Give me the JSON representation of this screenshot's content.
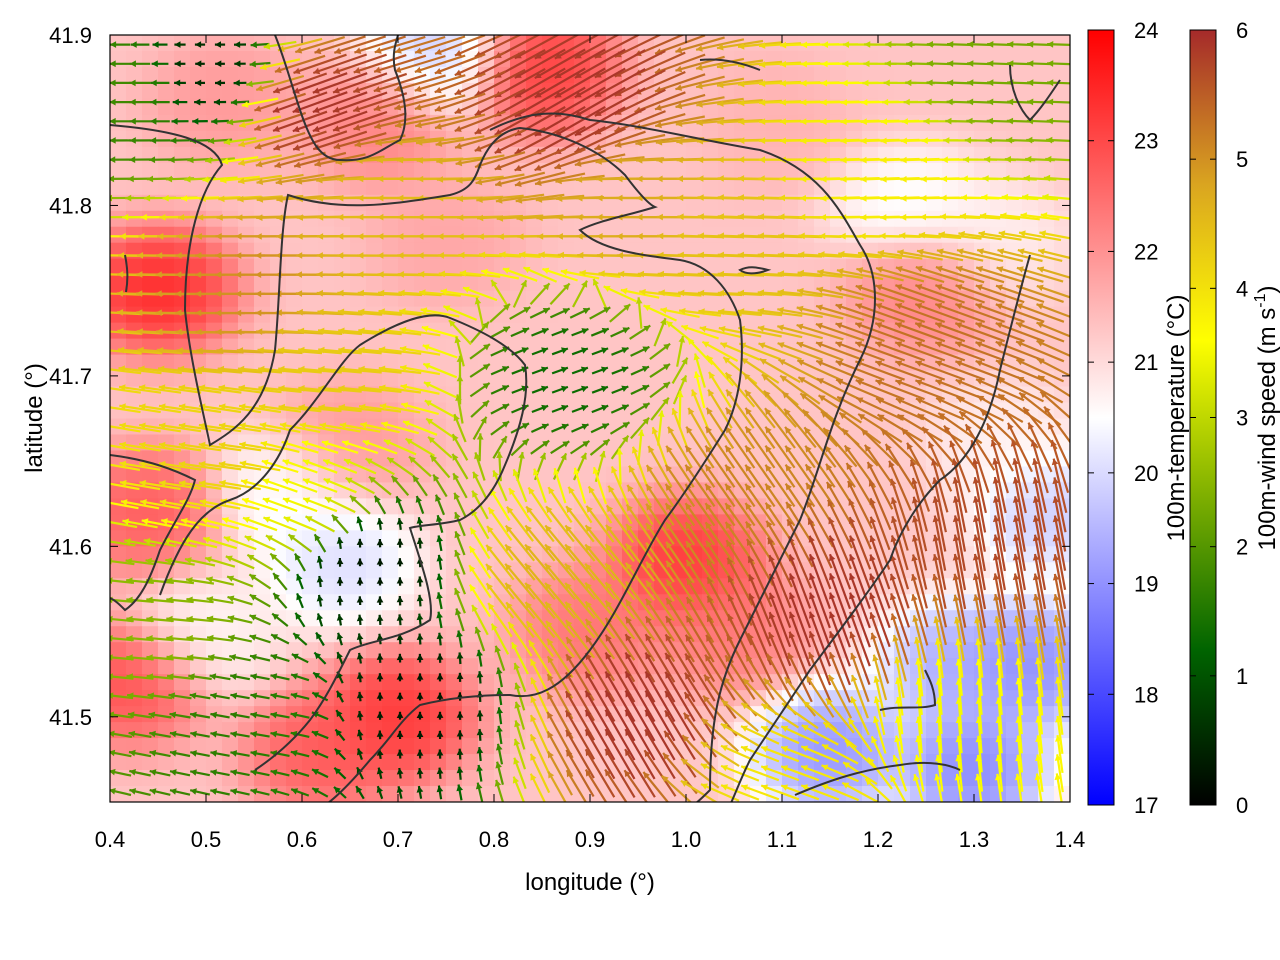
{
  "chart_data": {
    "type": "heatmap",
    "title": "",
    "xlabel": "longitude (°)",
    "ylabel": "latitude (°)",
    "xlim": [
      0.4,
      1.4
    ],
    "ylim": [
      41.45,
      41.9
    ],
    "x_ticks": [
      "0.4",
      "0.5",
      "0.6",
      "0.7",
      "0.8",
      "0.9",
      "1.0",
      "1.1",
      "1.2",
      "1.3",
      "1.4"
    ],
    "y_ticks": [
      "41.5",
      "41.6",
      "41.7",
      "41.8",
      "41.9"
    ],
    "grid": false,
    "legend": "none",
    "layers": [
      {
        "kind": "heatmap",
        "variable": "100m-temperature",
        "units": "°C",
        "range": [
          17,
          24
        ]
      },
      {
        "kind": "vectors",
        "variable": "100m-wind",
        "colored_by": "100m-wind speed",
        "units": "m s-1",
        "range": [
          0,
          6
        ]
      },
      {
        "kind": "contour",
        "color": "#333333"
      }
    ],
    "colorbars": [
      {
        "name": "temperature",
        "label": "100m-temperature (°C)",
        "min": 17,
        "max": 24,
        "ticks": [
          "17",
          "18",
          "19",
          "20",
          "21",
          "22",
          "23",
          "24"
        ],
        "colors": [
          "#0000ff",
          "#ffffff",
          "#ff0000"
        ]
      },
      {
        "name": "wind",
        "label_main": "100m-wind speed (m s",
        "label_sup": "-1",
        "label_end": ")",
        "min": 0,
        "max": 6,
        "ticks": [
          "0",
          "1",
          "2",
          "3",
          "4",
          "5",
          "6"
        ],
        "colors": [
          "#000000",
          "#006400",
          "#7fb000",
          "#ffff00",
          "#daa520",
          "#a52a2a"
        ]
      }
    ],
    "temperature_hotspots": [
      {
        "lon": 0.45,
        "lat": 41.75,
        "t": 23.8
      },
      {
        "lon": 0.44,
        "lat": 41.62,
        "t": 23.0
      },
      {
        "lon": 0.42,
        "lat": 41.52,
        "t": 23.2
      },
      {
        "lon": 0.7,
        "lat": 41.5,
        "t": 23.6
      },
      {
        "lon": 0.62,
        "lat": 41.48,
        "t": 23.0
      },
      {
        "lon": 0.85,
        "lat": 41.88,
        "t": 23.5
      },
      {
        "lon": 1.0,
        "lat": 41.59,
        "t": 23.6
      },
      {
        "lon": 1.05,
        "lat": 41.55,
        "t": 22.5
      },
      {
        "lon": 0.68,
        "lat": 41.85,
        "t": 22.4
      },
      {
        "lon": 0.9,
        "lat": 41.55,
        "t": 22.6
      },
      {
        "lon": 1.25,
        "lat": 41.75,
        "t": 22.4
      },
      {
        "lon": 0.65,
        "lat": 41.66,
        "t": 22.0
      },
      {
        "lon": 0.75,
        "lat": 41.78,
        "t": 21.8
      },
      {
        "lon": 1.1,
        "lat": 41.85,
        "t": 21.6
      },
      {
        "lon": 1.22,
        "lat": 41.88,
        "t": 21.3
      },
      {
        "lon": 0.52,
        "lat": 41.86,
        "t": 22.0
      },
      {
        "lon": 1.15,
        "lat": 41.48,
        "t": 18.6
      },
      {
        "lon": 1.3,
        "lat": 41.47,
        "t": 18.4
      },
      {
        "lon": 1.36,
        "lat": 41.53,
        "t": 18.5
      },
      {
        "lon": 1.38,
        "lat": 41.62,
        "t": 19.5
      },
      {
        "lon": 1.28,
        "lat": 41.53,
        "t": 19.0
      },
      {
        "lon": 1.23,
        "lat": 41.8,
        "t": 20.3
      },
      {
        "lon": 1.32,
        "lat": 41.78,
        "t": 20.6
      },
      {
        "lon": 0.74,
        "lat": 41.89,
        "t": 19.5
      },
      {
        "lon": 0.64,
        "lat": 41.59,
        "t": 19.8
      },
      {
        "lon": 0.58,
        "lat": 41.63,
        "t": 20.3
      },
      {
        "lon": 0.5,
        "lat": 41.55,
        "t": 20.5
      },
      {
        "lon": 1.33,
        "lat": 41.66,
        "t": 20.6
      }
    ],
    "temperature_background": 21.3,
    "wind_zones": [
      {
        "lon": 0.88,
        "lat": 41.7,
        "speed": 1.3,
        "dir": 20
      },
      {
        "lon": 0.67,
        "lat": 41.59,
        "speed": 0.3,
        "dir": 90
      },
      {
        "lon": 0.72,
        "lat": 41.51,
        "speed": 0.3,
        "dir": 90
      },
      {
        "lon": 0.55,
        "lat": 41.5,
        "speed": 1.6,
        "dir": 170
      },
      {
        "lon": 0.45,
        "lat": 41.55,
        "speed": 2.5,
        "dir": 175
      },
      {
        "lon": 0.42,
        "lat": 41.87,
        "speed": 1.8,
        "dir": 180
      },
      {
        "lon": 0.5,
        "lat": 41.88,
        "speed": 0.5,
        "dir": 180
      },
      {
        "lon": 0.62,
        "lat": 41.86,
        "speed": 5.9,
        "dir": 200
      },
      {
        "lon": 0.88,
        "lat": 41.86,
        "speed": 5.9,
        "dir": 210
      },
      {
        "lon": 0.7,
        "lat": 41.8,
        "speed": 4.5,
        "dir": 180
      },
      {
        "lon": 0.55,
        "lat": 41.75,
        "speed": 5.0,
        "dir": 180
      },
      {
        "lon": 0.63,
        "lat": 41.7,
        "speed": 4.3,
        "dir": 175
      },
      {
        "lon": 0.95,
        "lat": 41.8,
        "speed": 4.7,
        "dir": 180
      },
      {
        "lon": 1.05,
        "lat": 41.78,
        "speed": 4.4,
        "dir": 178
      },
      {
        "lon": 1.2,
        "lat": 41.82,
        "speed": 3.8,
        "dir": 182
      },
      {
        "lon": 1.25,
        "lat": 41.72,
        "speed": 5.3,
        "dir": 160
      },
      {
        "lon": 1.33,
        "lat": 41.88,
        "speed": 2.3,
        "dir": 178
      },
      {
        "lon": 1.05,
        "lat": 41.63,
        "speed": 5.1,
        "dir": 125
      },
      {
        "lon": 0.95,
        "lat": 41.5,
        "speed": 5.9,
        "dir": 120
      },
      {
        "lon": 1.15,
        "lat": 41.56,
        "speed": 5.9,
        "dir": 110
      },
      {
        "lon": 1.32,
        "lat": 41.6,
        "speed": 5.7,
        "dir": 100
      },
      {
        "lon": 1.28,
        "lat": 41.5,
        "speed": 3.5,
        "dir": 95
      },
      {
        "lon": 1.1,
        "lat": 41.46,
        "speed": 3.9,
        "dir": 160
      },
      {
        "lon": 0.86,
        "lat": 41.58,
        "speed": 4.6,
        "dir": 130
      },
      {
        "lon": 0.52,
        "lat": 41.65,
        "speed": 4.2,
        "dir": 172
      },
      {
        "lon": 0.6,
        "lat": 41.63,
        "speed": 3.5,
        "dir": 160
      }
    ]
  }
}
